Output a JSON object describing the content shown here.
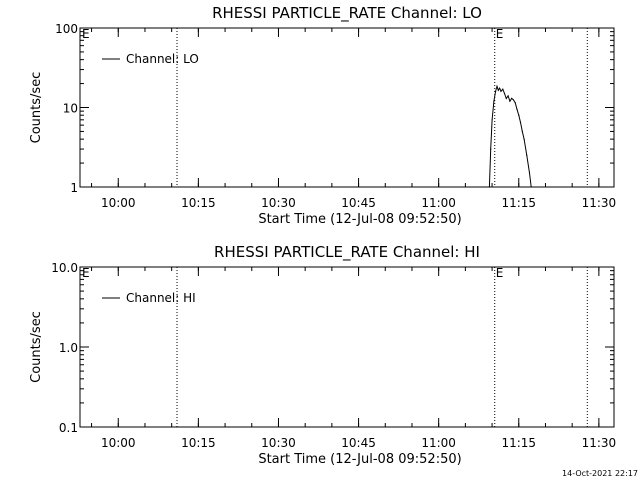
{
  "footer": {
    "timestamp": "14-Oct-2021 22:17"
  },
  "chart_data": [
    {
      "type": "line",
      "title": "RHESSI PARTICLE_RATE Channel: LO",
      "xlabel": "Start Time (12-Jul-08 09:52:50)",
      "ylabel": "Counts/sec",
      "yscale": "log",
      "ylim": [
        1,
        100
      ],
      "yticks": [
        1,
        10,
        100
      ],
      "ytick_labels": [
        "1",
        "10",
        "100"
      ],
      "xlim": [
        "09:52:50",
        "11:32:50"
      ],
      "xticks": [
        "10:00",
        "10:15",
        "10:30",
        "10:45",
        "11:00",
        "11:15",
        "11:30"
      ],
      "legend": {
        "label": "Channel: LO",
        "position": "top-left"
      },
      "vlines": [
        {
          "time": "10:11:00",
          "label": ""
        },
        {
          "time": "11:10:30",
          "label": "E"
        },
        {
          "time": "11:27:50",
          "label": ""
        }
      ],
      "left_marker": "E",
      "series": [
        {
          "name": "Channel: LO",
          "points": [
            [
              "11:09:30",
              1.0
            ],
            [
              "11:09:45",
              3.0
            ],
            [
              "11:10:00",
              7.0
            ],
            [
              "11:10:20",
              12.0
            ],
            [
              "11:10:40",
              16.0
            ],
            [
              "11:10:55",
              18.5
            ],
            [
              "11:11:10",
              16.5
            ],
            [
              "11:11:25",
              17.5
            ],
            [
              "11:11:40",
              16.0
            ],
            [
              "11:12:00",
              17.0
            ],
            [
              "11:12:20",
              15.0
            ],
            [
              "11:12:40",
              13.0
            ],
            [
              "11:13:00",
              14.0
            ],
            [
              "11:13:20",
              12.0
            ],
            [
              "11:13:40",
              13.0
            ],
            [
              "11:14:00",
              12.5
            ],
            [
              "11:14:20",
              11.5
            ],
            [
              "11:14:40",
              9.5
            ],
            [
              "11:15:00",
              8.0
            ],
            [
              "11:15:20",
              6.5
            ],
            [
              "11:15:40",
              5.0
            ],
            [
              "11:16:00",
              4.0
            ],
            [
              "11:16:30",
              2.5
            ],
            [
              "11:17:00",
              1.5
            ],
            [
              "11:17:20",
              1.0
            ]
          ]
        }
      ]
    },
    {
      "type": "line",
      "title": "RHESSI PARTICLE_RATE Channel: HI",
      "xlabel": "Start Time (12-Jul-08 09:52:50)",
      "ylabel": "Counts/sec",
      "yscale": "log",
      "ylim": [
        0.1,
        10
      ],
      "yticks": [
        0.1,
        1,
        10
      ],
      "ytick_labels": [
        "0.1",
        "1.0",
        "10.0"
      ],
      "xlim": [
        "09:52:50",
        "11:32:50"
      ],
      "xticks": [
        "10:00",
        "10:15",
        "10:30",
        "10:45",
        "11:00",
        "11:15",
        "11:30"
      ],
      "legend": {
        "label": "Channel: HI",
        "position": "top-left"
      },
      "vlines": [
        {
          "time": "10:11:00",
          "label": ""
        },
        {
          "time": "11:10:30",
          "label": "E"
        },
        {
          "time": "11:27:50",
          "label": ""
        }
      ],
      "left_marker": "E",
      "series": [
        {
          "name": "Channel: HI",
          "points": []
        }
      ]
    }
  ]
}
